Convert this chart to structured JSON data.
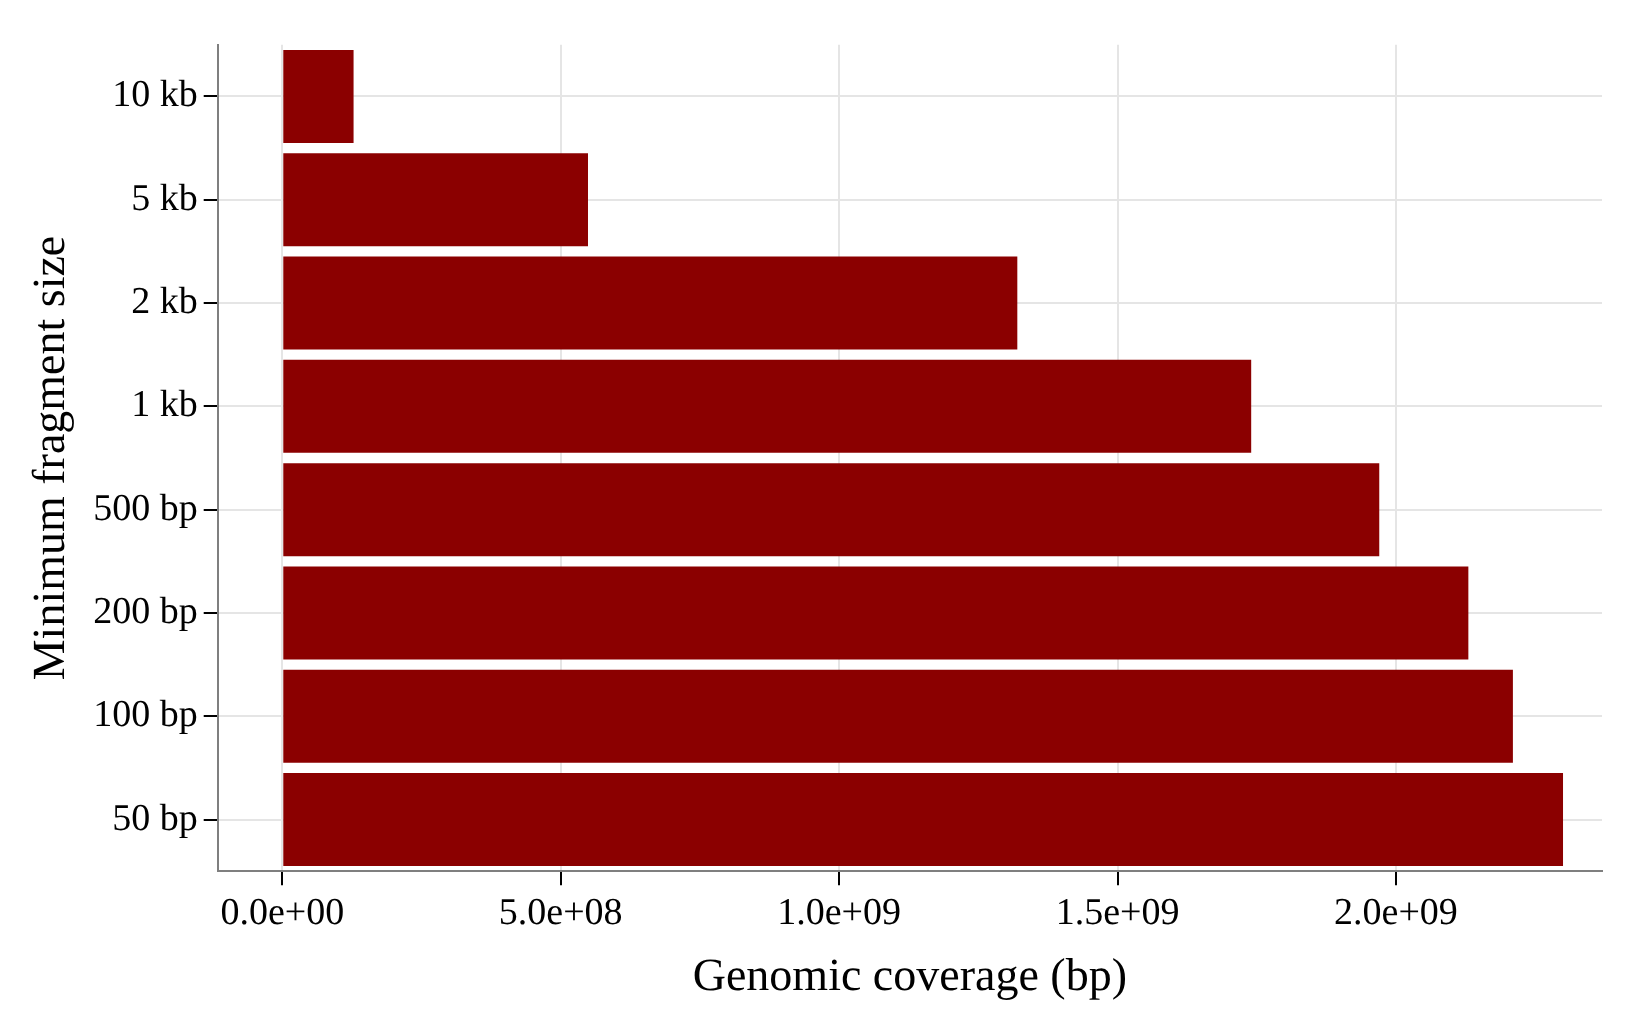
{
  "chart_data": {
    "type": "bar",
    "orientation": "horizontal",
    "xlabel": "Genomic coverage (bp)",
    "ylabel": "Minimum fragment size",
    "categories": [
      "10 kb",
      "5 kb",
      "2 kb",
      "1 kb",
      "500 bp",
      "200 bp",
      "100 bp",
      "50 bp"
    ],
    "values": [
      128000000.0,
      549000000.0,
      1320000000.0,
      1740000000.0,
      1970000000.0,
      2130000000.0,
      2210000000.0,
      2300000000.0
    ],
    "color": "#8b0000",
    "xlim": [
      -116000000.0,
      2370000000.0
    ],
    "xticks": [
      {
        "value": 0,
        "label": "0.0e+00"
      },
      {
        "value": 500000000.0,
        "label": "5.0e+08"
      },
      {
        "value": 1000000000.0,
        "label": "1.0e+09"
      },
      {
        "value": 1500000000.0,
        "label": "1.5e+09"
      },
      {
        "value": 2000000000.0,
        "label": "2.0e+09"
      }
    ],
    "grid": true
  }
}
